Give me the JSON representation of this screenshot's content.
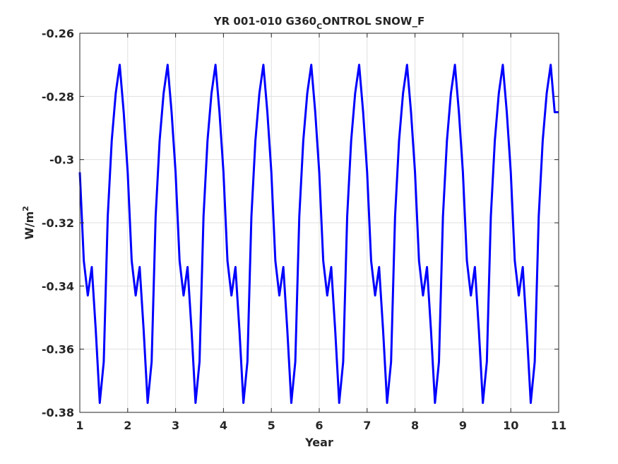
{
  "chart_data": {
    "type": "line",
    "title_main": "YR 001-010 G360",
    "title_sub": "C",
    "title_rest": "ONTROL SNOW_F",
    "xlabel": "Year",
    "ylabel_base": "W/m",
    "ylabel_sup": "2",
    "xlim": [
      1,
      11
    ],
    "ylim": [
      -0.38,
      -0.26
    ],
    "xticks": [
      1,
      2,
      3,
      4,
      5,
      6,
      7,
      8,
      9,
      10,
      11
    ],
    "xtick_labels": [
      "1",
      "2",
      "3",
      "4",
      "5",
      "6",
      "7",
      "8",
      "9",
      "10",
      "11"
    ],
    "yticks": [
      -0.26,
      -0.28,
      -0.3,
      -0.32,
      -0.34,
      -0.36,
      -0.38
    ],
    "ytick_labels": [
      "-0.26",
      "-0.28",
      "-0.3",
      "-0.32",
      "-0.34",
      "-0.36",
      "-0.38"
    ],
    "grid": true,
    "line_color": "#0000ff",
    "monthly_cycle": [
      -0.304,
      -0.332,
      -0.343,
      -0.334,
      -0.354,
      -0.377,
      -0.364,
      -0.318,
      -0.294,
      -0.279,
      -0.27,
      -0.285
    ],
    "final_value": -0.285,
    "years": 10
  }
}
